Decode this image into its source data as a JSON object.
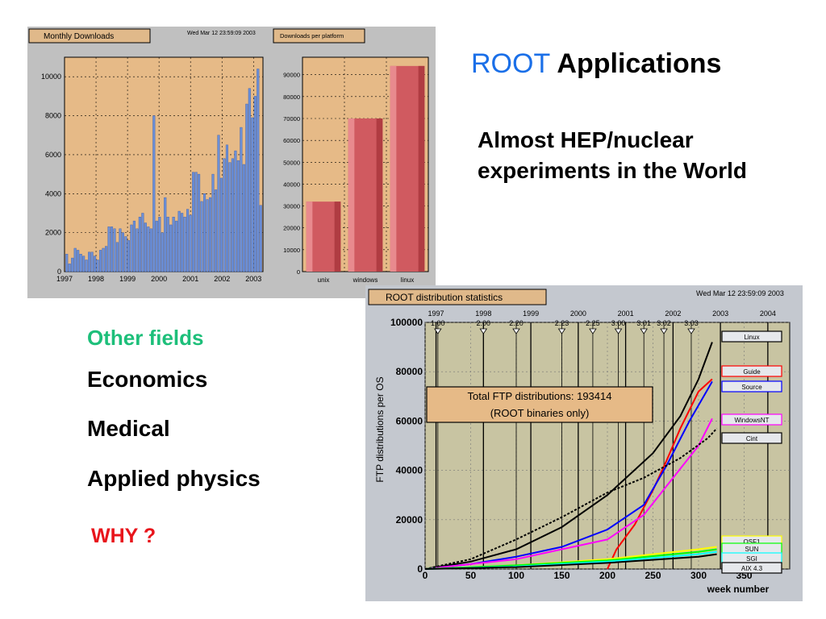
{
  "slide": {
    "title_accent": "ROOT",
    "title_rest": "Applications",
    "subtitle": "Almost HEP/nuclear experiments in the World",
    "other_fields_heading": "Other fields",
    "fields": [
      "Economics",
      "Medical",
      "Applied physics"
    ],
    "why": "WHY ?"
  },
  "chart_data": [
    {
      "type": "bar",
      "title": "Monthly Downloads",
      "timestamp": "Wed Mar 12 23:59:09 2003",
      "ylim": [
        0,
        11000
      ],
      "yticks": [
        0,
        2000,
        4000,
        6000,
        8000,
        10000
      ],
      "xticks": [
        "1997",
        "1998",
        "1999",
        "2000",
        "2001",
        "2002",
        "2003"
      ],
      "x_start": 1997.0,
      "x_end": 2003.3,
      "values": [
        900,
        400,
        700,
        1200,
        1100,
        900,
        800,
        600,
        1000,
        1000,
        800,
        600,
        1100,
        1200,
        1300,
        2300,
        2300,
        2200,
        1500,
        2200,
        2000,
        1800,
        1600,
        2400,
        2600,
        2200,
        2800,
        3000,
        2500,
        2300,
        2200,
        8000,
        2600,
        2800,
        2000,
        3800,
        2800,
        2400,
        2800,
        2600,
        3100,
        3000,
        2800,
        3200,
        2900,
        5100,
        5100,
        5000,
        3600,
        4000,
        3700,
        3800,
        5000,
        4200,
        7000,
        4800,
        5800,
        6500,
        5600,
        5800,
        6200,
        5700,
        7400,
        5500,
        8600,
        9400,
        7900,
        9000,
        10400,
        3400
      ],
      "grid": true
    },
    {
      "type": "bar",
      "title": "Downloads per platform",
      "categories": [
        "unix",
        "windows",
        "linux"
      ],
      "values": [
        32000,
        70000,
        94000
      ],
      "ylim": [
        0,
        98000
      ],
      "yticks": [
        0,
        10000,
        20000,
        30000,
        40000,
        50000,
        60000,
        70000,
        80000,
        90000
      ],
      "grid": true
    },
    {
      "type": "line",
      "title": "ROOT distribution statistics",
      "timestamp": "Wed Mar 12 23:59:09 2003",
      "xlabel": "week number",
      "ylabel": "FTP distributions per OS",
      "xlim": [
        0,
        400
      ],
      "ylim": [
        0,
        100000
      ],
      "xticks": [
        0,
        50,
        100,
        150,
        200,
        250,
        300,
        350
      ],
      "yticks": [
        0,
        20000,
        40000,
        60000,
        80000,
        100000
      ],
      "year_marks": [
        {
          "label": "1997",
          "x": 12
        },
        {
          "label": "1998",
          "x": 64
        },
        {
          "label": "1999",
          "x": 116
        },
        {
          "label": "2000",
          "x": 168
        },
        {
          "label": "2001",
          "x": 220
        },
        {
          "label": "2002",
          "x": 272
        },
        {
          "label": "2003",
          "x": 324
        },
        {
          "label": "2004",
          "x": 376
        }
      ],
      "release_marks": [
        {
          "label": "1.00",
          "x": 14
        },
        {
          "label": "2.00",
          "x": 64
        },
        {
          "label": "2.20",
          "x": 100
        },
        {
          "label": "2.23",
          "x": 150
        },
        {
          "label": "2.25",
          "x": 184
        },
        {
          "label": "3.00",
          "x": 212
        },
        {
          "label": "3.01",
          "x": 240
        },
        {
          "label": "3.02",
          "x": 262
        },
        {
          "label": "3.03",
          "x": 292
        }
      ],
      "annotation_lines": [
        "Total FTP distributions: 193414",
        "(ROOT binaries only)"
      ],
      "series": [
        {
          "name": "Linux",
          "color": "#000000",
          "dash": "",
          "points": [
            [
              0,
              0
            ],
            [
              50,
              3000
            ],
            [
              100,
              8000
            ],
            [
              150,
              17000
            ],
            [
              200,
              30000
            ],
            [
              250,
              47000
            ],
            [
              280,
              62000
            ],
            [
              300,
              77000
            ],
            [
              315,
              92000
            ]
          ]
        },
        {
          "name": "Guide",
          "color": "#ff0000",
          "dash": "",
          "points": [
            [
              200,
              0
            ],
            [
              210,
              8000
            ],
            [
              230,
              18000
            ],
            [
              250,
              32000
            ],
            [
              265,
              44000
            ],
            [
              280,
              57000
            ],
            [
              300,
              72000
            ],
            [
              315,
              77000
            ]
          ]
        },
        {
          "name": "Source",
          "color": "#0000ff",
          "dash": "",
          "points": [
            [
              0,
              0
            ],
            [
              50,
              2000
            ],
            [
              100,
              5000
            ],
            [
              150,
              9000
            ],
            [
              200,
              16000
            ],
            [
              240,
              26000
            ],
            [
              265,
              42000
            ],
            [
              290,
              60000
            ],
            [
              315,
              76000
            ]
          ]
        },
        {
          "name": "WindowsNT",
          "color": "#ff00ff",
          "dash": "",
          "points": [
            [
              0,
              0
            ],
            [
              100,
              4000
            ],
            [
              150,
              8000
            ],
            [
              200,
              12000
            ],
            [
              240,
              22000
            ],
            [
              270,
              36000
            ],
            [
              300,
              50000
            ],
            [
              315,
              61000
            ]
          ]
        },
        {
          "name": "Cint",
          "color": "#000000",
          "dash": "3,2",
          "points": [
            [
              0,
              0
            ],
            [
              50,
              4000
            ],
            [
              100,
              12000
            ],
            [
              150,
              21000
            ],
            [
              200,
              31000
            ],
            [
              240,
              37000
            ],
            [
              280,
              45000
            ],
            [
              310,
              53000
            ],
            [
              320,
              57000
            ]
          ]
        },
        {
          "name": "OSF1",
          "color": "#ffff00",
          "dash": "",
          "points": [
            [
              0,
              0
            ],
            [
              100,
              1500
            ],
            [
              200,
              4000
            ],
            [
              300,
              8000
            ],
            [
              320,
              9000
            ]
          ]
        },
        {
          "name": "SUN",
          "color": "#00ff00",
          "dash": "",
          "points": [
            [
              0,
              0
            ],
            [
              100,
              1500
            ],
            [
              200,
              3500
            ],
            [
              300,
              7000
            ],
            [
              320,
              8000
            ]
          ]
        },
        {
          "name": "SGI",
          "color": "#00ffff",
          "dash": "",
          "points": [
            [
              0,
              0
            ],
            [
              100,
              1000
            ],
            [
              200,
              3000
            ],
            [
              300,
              6000
            ],
            [
              320,
              7000
            ]
          ]
        },
        {
          "name": "AIX 4.3",
          "color": "#000000",
          "dash": "",
          "points": [
            [
              0,
              0
            ],
            [
              100,
              800
            ],
            [
              200,
              2500
            ],
            [
              300,
              5000
            ],
            [
              320,
              6000
            ]
          ]
        }
      ]
    }
  ]
}
